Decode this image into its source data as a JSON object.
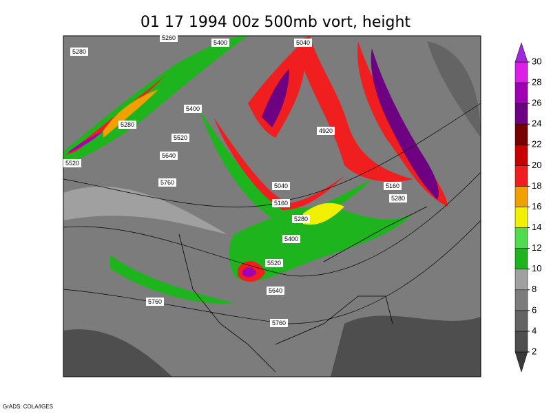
{
  "title": "01 17 1994 00z 500mb vort, height",
  "footer": "GrADS: COLA/IGES",
  "contour_labels": [
    5260,
    5400,
    5040,
    5280,
    5400,
    5280,
    4920,
    5520,
    5640,
    5520,
    5760,
    5040,
    5160,
    5160,
    5280,
    5280,
    5400,
    5520,
    5640,
    5760,
    5760
  ],
  "colorbar": {
    "ticks": [
      2,
      4,
      6,
      8,
      10,
      12,
      14,
      16,
      18,
      20,
      22,
      24,
      26,
      28,
      30
    ],
    "colors": [
      "#3a3a3a",
      "#4e4e4e",
      "#646464",
      "#7c7c7c",
      "#a0a0a0",
      "#1eb41e",
      "#50dc50",
      "#f0f000",
      "#f0a000",
      "#f01e1e",
      "#c80000",
      "#780000",
      "#6e0082",
      "#a000b4",
      "#dc1ee6",
      "#a028dc"
    ]
  }
}
